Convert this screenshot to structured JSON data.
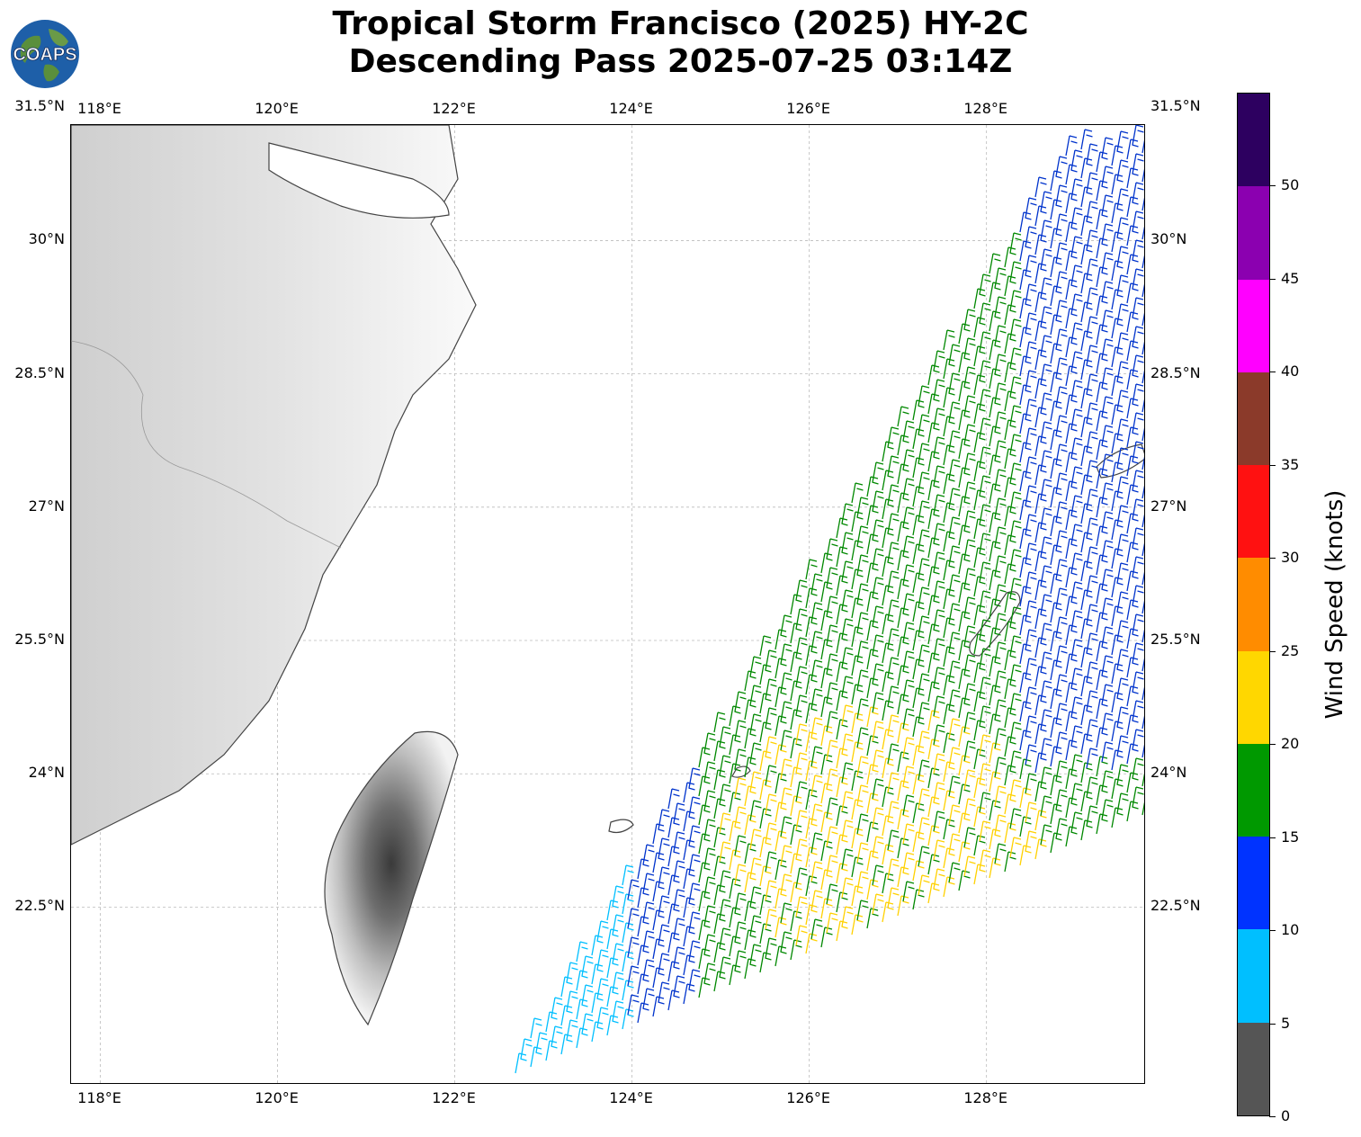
{
  "title": {
    "line1": "Tropical Storm Francisco (2025) HY-2C",
    "line2": "Descending Pass 2025-07-25 03:14Z"
  },
  "logo": {
    "text": "COAPS",
    "icon": "globe-logo-icon"
  },
  "map": {
    "lon_range": [
      117.67,
      129.8
    ],
    "lat_range": [
      20.5,
      31.3
    ],
    "x_ticks": [
      "118°E",
      "120°E",
      "122°E",
      "124°E",
      "126°E",
      "128°E"
    ],
    "x_tick_values": [
      118,
      120,
      122,
      124,
      126,
      128
    ],
    "y_ticks": [
      "31.5°N",
      "30°N",
      "28.5°N",
      "27°N",
      "25.5°N",
      "24°N",
      "22.5°N"
    ],
    "y_tick_values": [
      31.5,
      30,
      28.5,
      27,
      25.5,
      24,
      22.5
    ],
    "gridlines": true,
    "coastline_color": "#444444",
    "barb_colors": {
      "light_blue": "#00bfff",
      "blue": "#0033cc",
      "green": "#008800",
      "yellow": "#ffd100"
    }
  },
  "colorbar": {
    "title": "Wind Speed (knots)",
    "labels": [
      "0",
      "5",
      "10",
      "15",
      "20",
      "25",
      "30",
      "35",
      "40",
      "45",
      "50"
    ],
    "values": [
      0,
      5,
      10,
      15,
      20,
      25,
      30,
      35,
      40,
      45,
      50
    ],
    "segments": [
      {
        "from": 0,
        "to": 5,
        "color": "#555555"
      },
      {
        "from": 5,
        "to": 10,
        "color": "#00bfff"
      },
      {
        "from": 10,
        "to": 15,
        "color": "#0033ff"
      },
      {
        "from": 15,
        "to": 20,
        "color": "#009900"
      },
      {
        "from": 20,
        "to": 25,
        "color": "#ffd700"
      },
      {
        "from": 25,
        "to": 30,
        "color": "#ff8c00"
      },
      {
        "from": 30,
        "to": 35,
        "color": "#ff1111"
      },
      {
        "from": 35,
        "to": 40,
        "color": "#8b3a2a"
      },
      {
        "from": 40,
        "to": 45,
        "color": "#ff00ff"
      },
      {
        "from": 45,
        "to": 50,
        "color": "#8b00b0"
      },
      {
        "from": 50,
        "to": 55,
        "color": "#2d0060"
      }
    ]
  }
}
